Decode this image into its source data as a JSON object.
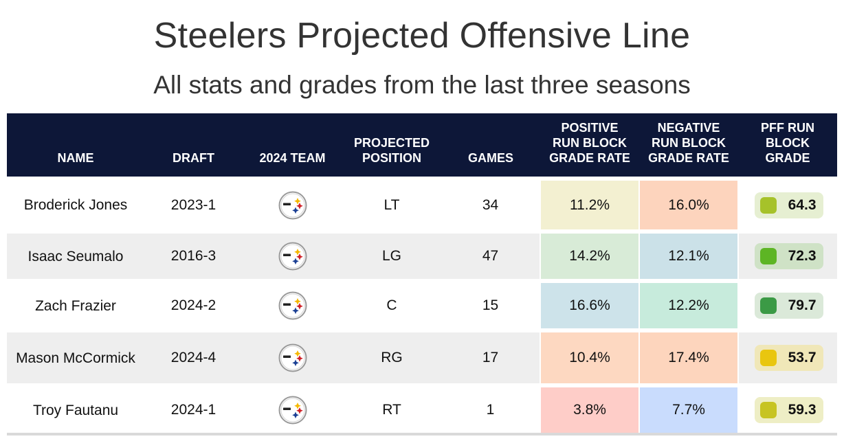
{
  "title": "Steelers Projected Offensive Line",
  "subtitle": "All stats and grades from the last three seasons",
  "colors": {
    "header_bg": "#0d1738",
    "row_alt": "#eeeeee"
  },
  "chart_data": {
    "type": "table",
    "columns": [
      "NAME",
      "DRAFT",
      "2024 TEAM",
      "PROJECTED POSITION",
      "GAMES",
      "POSITIVE RUN BLOCK GRADE RATE",
      "NEGATIVE RUN BLOCK GRADE RATE",
      "PFF RUN BLOCK GRADE"
    ],
    "rows": [
      {
        "name": "Broderick Jones",
        "draft": "2023-1",
        "team_icon": "steelers-logo-icon",
        "position": "LT",
        "games": "34",
        "pos_rate": "11.2%",
        "neg_rate": "16.0%",
        "grade": "64.3",
        "pos_color": "#f3f0d1",
        "neg_color": "#fdd4bd",
        "grade_bg": "#e6efd2",
        "grade_dot": "#a6c22a"
      },
      {
        "name": "Isaac Seumalo",
        "draft": "2016-3",
        "team_icon": "steelers-logo-icon",
        "position": "LG",
        "games": "47",
        "pos_rate": "14.2%",
        "neg_rate": "12.1%",
        "grade": "72.3",
        "pos_color": "#d8ebd7",
        "neg_color": "#cbe1e8",
        "grade_bg": "#cfe2c6",
        "grade_dot": "#5db524"
      },
      {
        "name": "Zach Frazier",
        "draft": "2024-2",
        "team_icon": "steelers-logo-icon",
        "position": "C",
        "games": "15",
        "pos_rate": "16.6%",
        "neg_rate": "12.2%",
        "grade": "79.7",
        "pos_color": "#cde3ea",
        "neg_color": "#c7ebdc",
        "grade_bg": "#dbe9d9",
        "grade_dot": "#3b9a45"
      },
      {
        "name": "Mason McCormick",
        "draft": "2024-4",
        "team_icon": "steelers-logo-icon",
        "position": "RG",
        "games": "17",
        "pos_rate": "10.4%",
        "neg_rate": "17.4%",
        "grade": "53.7",
        "pos_color": "#fdd8c1",
        "neg_color": "#fdd5bd",
        "grade_bg": "#f0e7b8",
        "grade_dot": "#e9c60f"
      },
      {
        "name": "Troy Fautanu",
        "draft": "2024-1",
        "team_icon": "steelers-logo-icon",
        "position": "RT",
        "games": "1",
        "pos_rate": "3.8%",
        "neg_rate": "7.7%",
        "grade": "59.3",
        "pos_color": "#fecdc8",
        "neg_color": "#c9dcfd",
        "grade_bg": "#eeeec5",
        "grade_dot": "#c7c423"
      }
    ]
  }
}
